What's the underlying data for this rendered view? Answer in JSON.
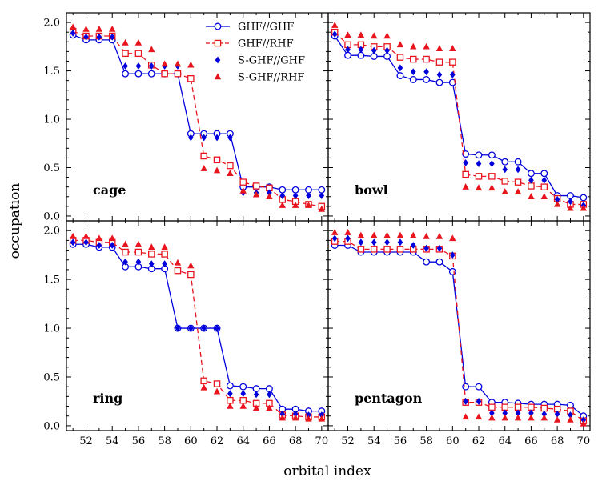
{
  "colors": {
    "ghf_ghf": "#0000dd",
    "ghf_rhf": "#e8141e",
    "sghf_ghf": "#0000dd",
    "sghf_rhf": "#e8141e"
  },
  "chart_data": {
    "type": "line",
    "xlabel": "orbital index",
    "ylabel": "occupation",
    "xlim": [
      50.5,
      70.5
    ],
    "ylim": [
      -0.05,
      2.1
    ],
    "xticks": [
      52,
      54,
      56,
      58,
      60,
      62,
      64,
      66,
      68,
      70
    ],
    "yticks": [
      0.0,
      0.5,
      1.0,
      1.5,
      2.0
    ],
    "ytick_labels": [
      "0.0",
      "0.5",
      "1.0",
      "1.5",
      "2.0"
    ],
    "legend": [
      {
        "name": "GHF//GHF",
        "style": "line-open-circle"
      },
      {
        "name": "GHF//RHF",
        "style": "dashed-open-square"
      },
      {
        "name": "S-GHF//GHF",
        "style": "filled-diamond"
      },
      {
        "name": "S-GHF//RHF",
        "style": "filled-triangle"
      }
    ],
    "x": [
      51,
      52,
      53,
      54,
      55,
      56,
      57,
      58,
      59,
      60,
      61,
      62,
      63,
      64,
      65,
      66,
      67,
      68,
      69,
      70
    ],
    "panels": [
      {
        "label": "cage",
        "series": [
          {
            "name": "GHF//GHF",
            "values": [
              1.87,
              1.82,
              1.82,
              1.82,
              1.47,
              1.47,
              1.47,
              1.47,
              1.47,
              0.85,
              0.85,
              0.85,
              0.85,
              0.3,
              0.3,
              0.3,
              0.27,
              0.27,
              0.27,
              0.27
            ]
          },
          {
            "name": "GHF//RHF",
            "values": [
              1.91,
              1.86,
              1.86,
              1.86,
              1.68,
              1.68,
              1.56,
              1.47,
              1.47,
              1.42,
              0.62,
              0.58,
              0.52,
              0.35,
              0.31,
              0.29,
              0.17,
              0.15,
              0.12,
              0.1
            ]
          },
          {
            "name": "S-GHF//GHF",
            "values": [
              1.89,
              1.85,
              1.85,
              1.85,
              1.55,
              1.55,
              1.55,
              1.55,
              1.55,
              0.81,
              0.81,
              0.81,
              0.81,
              0.24,
              0.24,
              0.24,
              0.21,
              0.21,
              0.21,
              0.21
            ]
          },
          {
            "name": "S-GHF//RHF",
            "values": [
              1.95,
              1.93,
              1.93,
              1.93,
              1.79,
              1.79,
              1.72,
              1.57,
              1.57,
              1.56,
              0.49,
              0.47,
              0.44,
              0.26,
              0.22,
              0.2,
              0.11,
              0.11,
              0.11,
              0.07
            ]
          }
        ]
      },
      {
        "label": "bowl",
        "series": [
          {
            "name": "GHF//GHF",
            "values": [
              1.86,
              1.66,
              1.66,
              1.65,
              1.65,
              1.45,
              1.41,
              1.41,
              1.38,
              1.38,
              0.64,
              0.63,
              0.63,
              0.56,
              0.56,
              0.44,
              0.44,
              0.21,
              0.21,
              0.19
            ]
          },
          {
            "name": "GHF//RHF",
            "values": [
              1.9,
              1.77,
              1.77,
              1.75,
              1.75,
              1.64,
              1.62,
              1.62,
              1.59,
              1.59,
              0.43,
              0.41,
              0.41,
              0.36,
              0.35,
              0.31,
              0.3,
              0.18,
              0.12,
              0.12
            ]
          },
          {
            "name": "S-GHF//GHF",
            "values": [
              1.88,
              1.72,
              1.72,
              1.71,
              1.71,
              1.53,
              1.49,
              1.49,
              1.46,
              1.46,
              0.55,
              0.54,
              0.54,
              0.48,
              0.48,
              0.37,
              0.37,
              0.17,
              0.15,
              0.11
            ]
          },
          {
            "name": "S-GHF//RHF",
            "values": [
              1.97,
              1.87,
              1.87,
              1.86,
              1.86,
              1.77,
              1.75,
              1.75,
              1.73,
              1.73,
              0.3,
              0.29,
              0.29,
              0.25,
              0.25,
              0.2,
              0.2,
              0.12,
              0.08,
              0.08
            ]
          }
        ]
      },
      {
        "label": "ring",
        "series": [
          {
            "name": "GHF//GHF",
            "values": [
              1.86,
              1.86,
              1.83,
              1.83,
              1.63,
              1.63,
              1.61,
              1.61,
              1.0,
              1.0,
              1.0,
              1.0,
              0.41,
              0.4,
              0.38,
              0.38,
              0.17,
              0.17,
              0.15,
              0.15
            ]
          },
          {
            "name": "GHF//RHF",
            "values": [
              1.9,
              1.9,
              1.88,
              1.88,
              1.78,
              1.78,
              1.76,
              1.76,
              1.59,
              1.55,
              0.46,
              0.43,
              0.26,
              0.26,
              0.23,
              0.23,
              0.11,
              0.1,
              0.09,
              0.09
            ]
          },
          {
            "name": "S-GHF//GHF",
            "values": [
              1.88,
              1.88,
              1.85,
              1.85,
              1.68,
              1.68,
              1.66,
              1.66,
              1.0,
              1.0,
              1.0,
              1.0,
              0.33,
              0.33,
              0.32,
              0.32,
              0.12,
              0.12,
              0.11,
              0.11
            ]
          },
          {
            "name": "S-GHF//RHF",
            "values": [
              1.94,
              1.94,
              1.92,
              1.92,
              1.86,
              1.86,
              1.83,
              1.83,
              1.67,
              1.64,
              0.39,
              0.35,
              0.2,
              0.2,
              0.18,
              0.18,
              0.08,
              0.08,
              0.07,
              0.07
            ]
          }
        ]
      },
      {
        "label": "pentagon",
        "series": [
          {
            "name": "GHF//GHF",
            "values": [
              1.85,
              1.85,
              1.78,
              1.78,
              1.78,
              1.78,
              1.78,
              1.68,
              1.68,
              1.58,
              0.4,
              0.4,
              0.24,
              0.24,
              0.23,
              0.22,
              0.22,
              0.22,
              0.21,
              0.1
            ]
          },
          {
            "name": "GHF//RHF",
            "values": [
              1.89,
              1.89,
              1.81,
              1.81,
              1.81,
              1.81,
              1.81,
              1.81,
              1.81,
              1.74,
              0.24,
              0.24,
              0.19,
              0.19,
              0.19,
              0.19,
              0.18,
              0.17,
              0.15,
              0.05
            ]
          },
          {
            "name": "S-GHF//GHF",
            "values": [
              1.92,
              1.92,
              1.88,
              1.88,
              1.88,
              1.88,
              1.85,
              1.82,
              1.82,
              1.75,
              0.25,
              0.25,
              0.13,
              0.13,
              0.13,
              0.13,
              0.12,
              0.12,
              0.11,
              0.06
            ]
          },
          {
            "name": "S-GHF//RHF",
            "values": [
              1.98,
              1.98,
              1.95,
              1.95,
              1.95,
              1.95,
              1.95,
              1.94,
              1.94,
              1.92,
              0.09,
              0.09,
              0.08,
              0.08,
              0.08,
              0.08,
              0.08,
              0.06,
              0.06,
              0.02
            ]
          }
        ]
      }
    ]
  }
}
